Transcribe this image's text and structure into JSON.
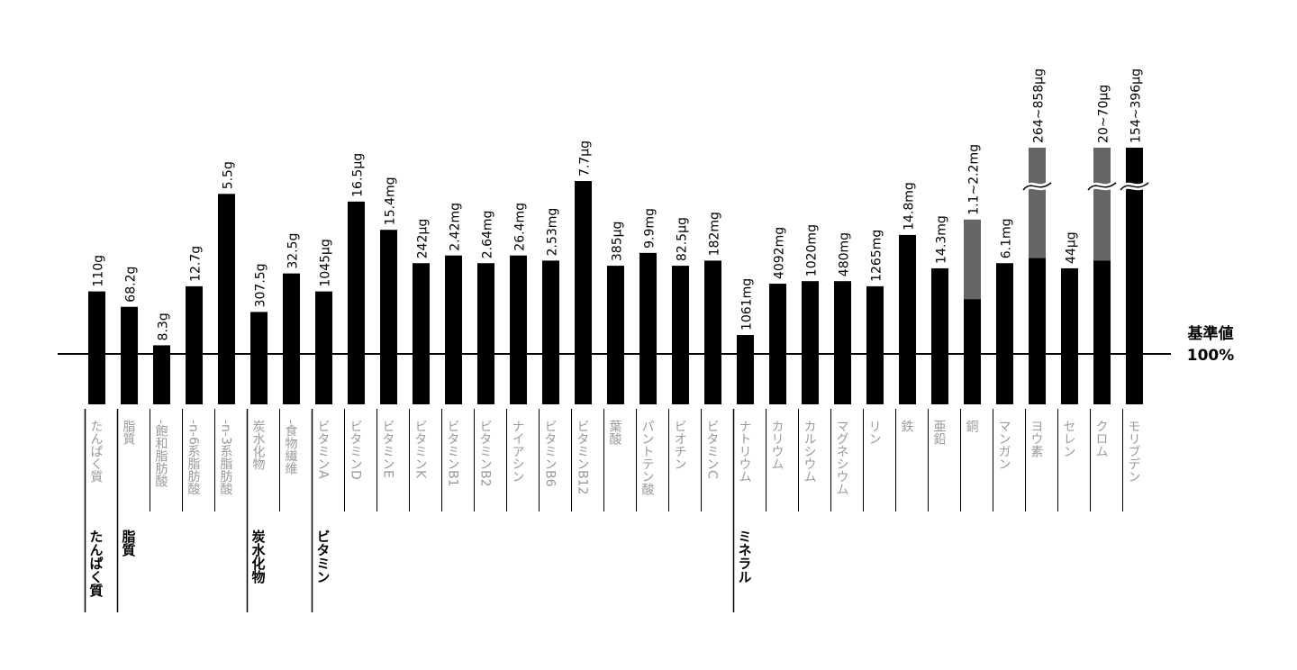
{
  "chart_data": {
    "type": "bar",
    "baseline_label_line1": "基準値",
    "baseline_label_line2": "100%",
    "colors": {
      "bar": "#000000",
      "range": "#666666",
      "label": "#9a9a9a",
      "baseline": "#000000"
    },
    "ylim": [
      0,
      100
    ],
    "bars": [
      {
        "name": "たんぱく質",
        "value_label": "110g",
        "value": 44,
        "group_start": true
      },
      {
        "name": "脂質",
        "value_label": "68.2g",
        "value": 38,
        "group_start": true
      },
      {
        "name": "-飽和脂肪酸",
        "value_label": "8.3g",
        "value": 23
      },
      {
        "name": "-n-6系脂肪酸",
        "value_label": "12.7g",
        "value": 46
      },
      {
        "name": "-n-3系脂肪酸",
        "value_label": "5.5g",
        "value": 82
      },
      {
        "name": "炭水化物",
        "value_label": "307.5g",
        "value": 36,
        "group_start": true
      },
      {
        "name": "-食物繊維",
        "value_label": "32.5g",
        "value": 51
      },
      {
        "name": "ビタミンA",
        "value_label": "1045µg",
        "value": 44,
        "group_start": true
      },
      {
        "name": "ビタミンD",
        "value_label": "16.5µg",
        "value": 79
      },
      {
        "name": "ビタミンE",
        "value_label": "15.4mg",
        "value": 68
      },
      {
        "name": "ビタミンK",
        "value_label": "242µg",
        "value": 55
      },
      {
        "name": "ビタミンB1",
        "value_label": "2.42mg",
        "value": 58
      },
      {
        "name": "ビタミンB2",
        "value_label": "2.64mg",
        "value": 55
      },
      {
        "name": "ナイアシン",
        "value_label": "26.4mg",
        "value": 58
      },
      {
        "name": "ビタミンB6",
        "value_label": "2.53mg",
        "value": 56
      },
      {
        "name": "ビタミンB12",
        "value_label": "7.7µg",
        "value": 87
      },
      {
        "name": "葉酸",
        "value_label": "385µg",
        "value": 54
      },
      {
        "name": "パントテン酸",
        "value_label": "9.9mg",
        "value": 59
      },
      {
        "name": "ビオチン",
        "value_label": "82.5µg",
        "value": 54
      },
      {
        "name": "ビタミンC",
        "value_label": "182mg",
        "value": 56
      },
      {
        "name": "ナトリウム",
        "value_label": "1061mg",
        "value": 27,
        "group_start": true
      },
      {
        "name": "カリウム",
        "value_label": "4092mg",
        "value": 47
      },
      {
        "name": "カルシウム",
        "value_label": "1020mg",
        "value": 48
      },
      {
        "name": "マグネシウム",
        "value_label": "480mg",
        "value": 48
      },
      {
        "name": "リン",
        "value_label": "1265mg",
        "value": 46
      },
      {
        "name": "鉄",
        "value_label": "14.8mg",
        "value": 66
      },
      {
        "name": "亜鉛",
        "value_label": "14.3mg",
        "value": 53
      },
      {
        "name": "銅",
        "value_label": "1.1~2.2mg",
        "value": 41,
        "range_max": 72
      },
      {
        "name": "マンガン",
        "value_label": "6.1mg",
        "value": 55
      },
      {
        "name": "ヨウ素",
        "value_label": "264~858µg",
        "value": 57,
        "range_max": 100,
        "break": true
      },
      {
        "name": "セレン",
        "value_label": "44µg",
        "value": 53
      },
      {
        "name": "クロム",
        "value_label": "20~70µg",
        "value": 56,
        "range_max": 100,
        "break": true
      },
      {
        "name": "モリブデン",
        "value_label": "154~396µg",
        "value": 100,
        "break": true
      }
    ],
    "groups": [
      {
        "name": "たんぱく質"
      },
      {
        "name": "脂質"
      },
      {
        "name": "炭水化物"
      },
      {
        "name": "ビタミン"
      },
      {
        "name": "ミネラル"
      }
    ]
  }
}
